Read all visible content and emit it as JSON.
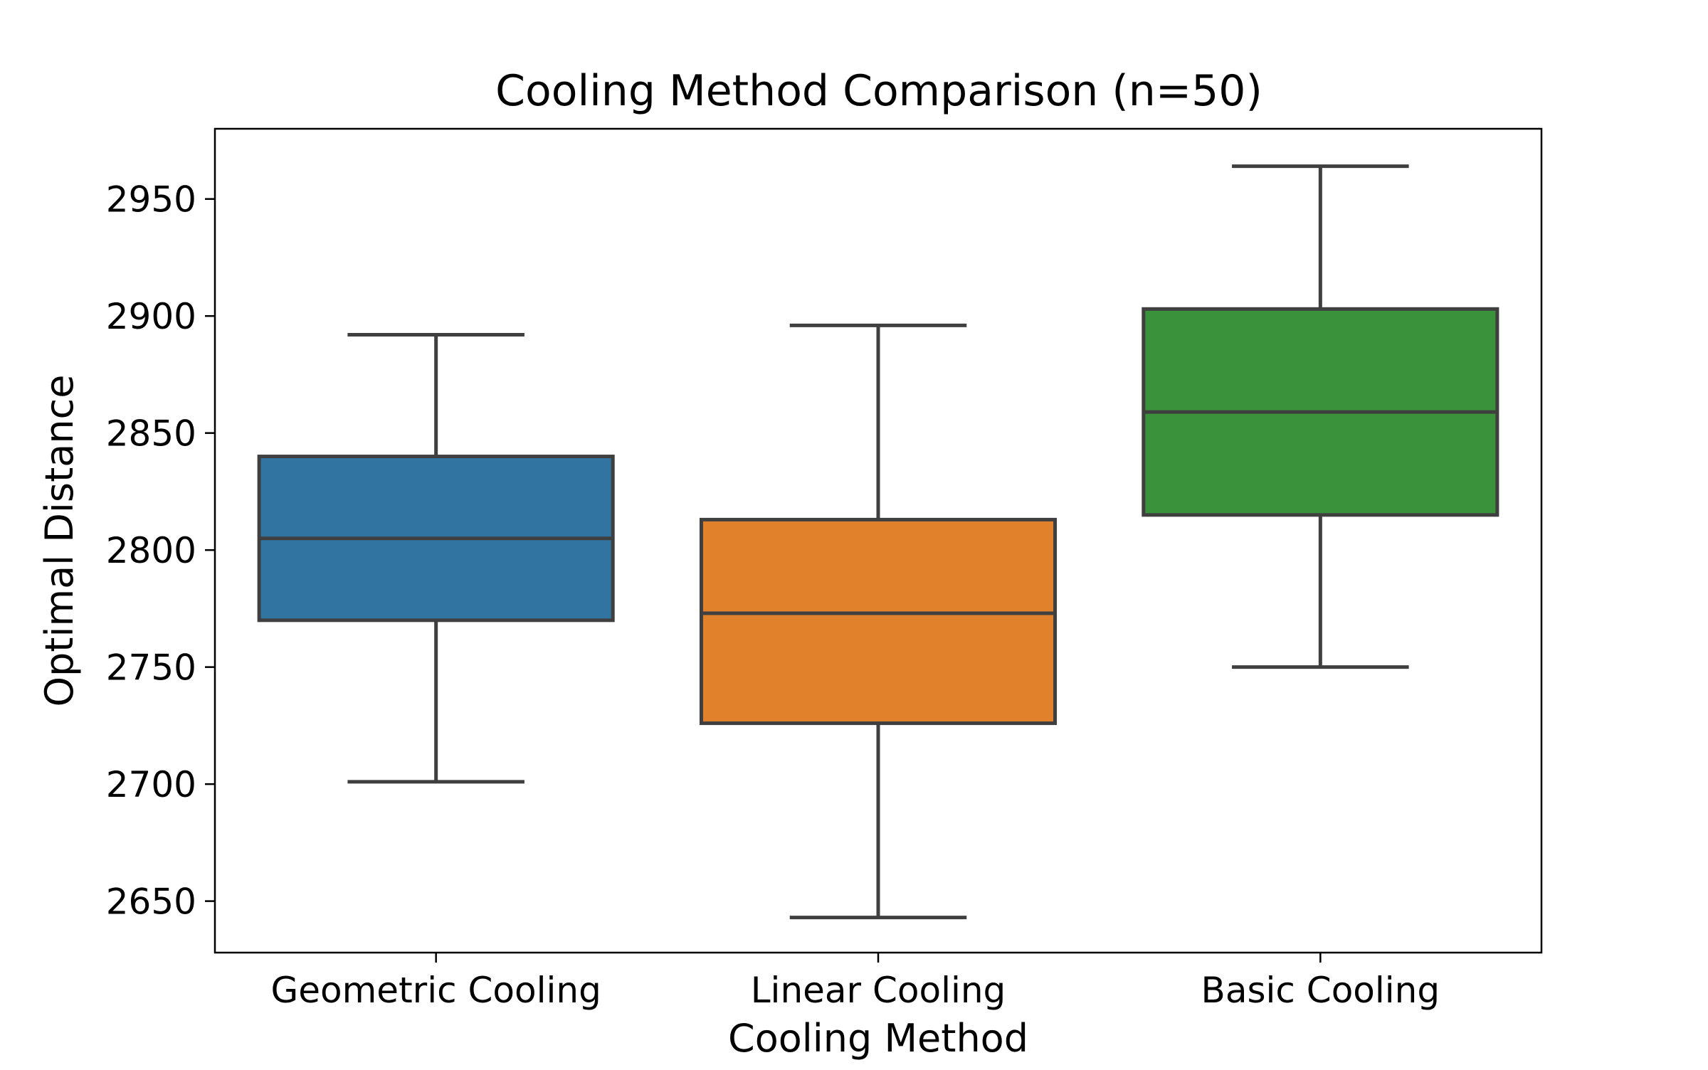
{
  "chart_data": {
    "type": "box",
    "title": "Cooling Method Comparison (n=50)",
    "xlabel": "Cooling Method",
    "ylabel": "Optimal Distance",
    "ylim": [
      2628,
      2980
    ],
    "yticks": [
      2650,
      2700,
      2750,
      2800,
      2850,
      2900,
      2950
    ],
    "ytick_labels": [
      "2650",
      "2700",
      "2750",
      "2800",
      "2850",
      "2900",
      "2950"
    ],
    "categories": [
      "Geometric Cooling",
      "Linear Cooling",
      "Basic Cooling"
    ],
    "boxes": [
      {
        "category": "Geometric Cooling",
        "whisker_low": 2701,
        "q1": 2770,
        "median": 2805,
        "q3": 2840,
        "whisker_high": 2892,
        "color": "#3274a1"
      },
      {
        "category": "Linear Cooling",
        "whisker_low": 2643,
        "q1": 2726,
        "median": 2773,
        "q3": 2813,
        "whisker_high": 2896,
        "color": "#e1812c"
      },
      {
        "category": "Basic Cooling",
        "whisker_low": 2750,
        "q1": 2815,
        "median": 2859,
        "q3": 2903,
        "whisker_high": 2964,
        "color": "#3a923a"
      }
    ],
    "grid": false,
    "legend": "none",
    "line_color": "#3f3f3f"
  }
}
